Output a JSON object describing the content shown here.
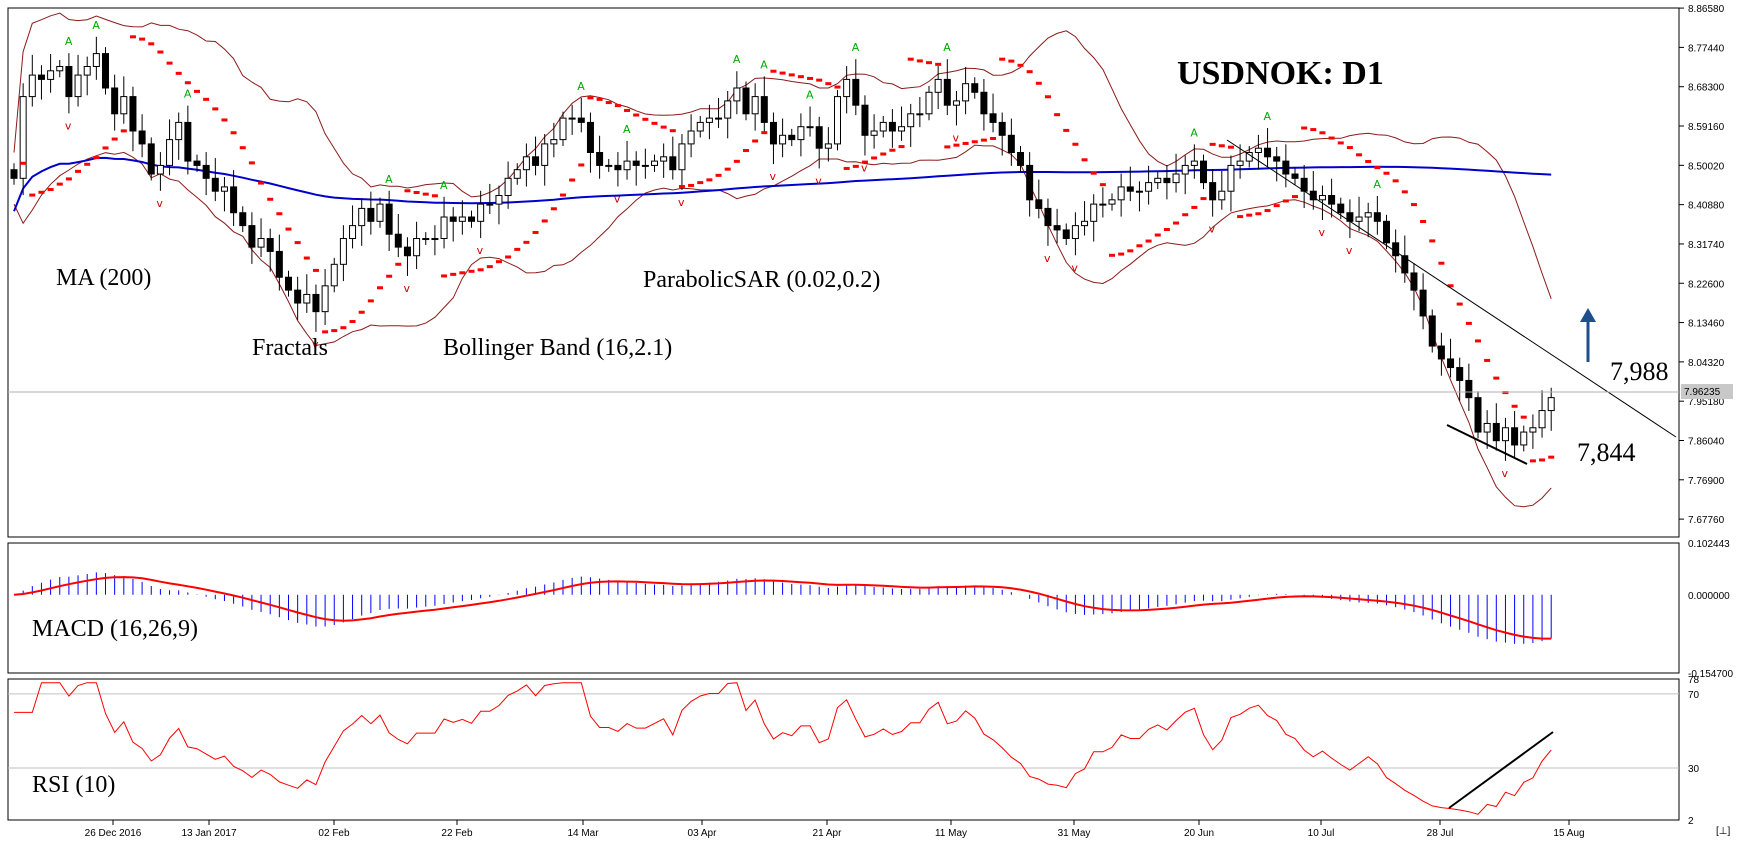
{
  "chart_title": "USDNOK: D1",
  "price_readout": "7.96235",
  "indicator_labels": {
    "ma": "MA (200)",
    "fractals": "Fractals",
    "bollinger": "Bollinger Band (16,2.1)",
    "sar": "ParabolicSAR (0.02,0.2)",
    "macd": "MACD (16,26,9)",
    "rsi": "RSI (10)"
  },
  "annotations": {
    "resistance": "7,988",
    "support": "7,844"
  },
  "colors": {
    "bull_candle": "#ffffff",
    "bear_candle": "#000000",
    "ma": "#0000cc",
    "bollinger": "#8b1a1a",
    "sar": "#ff0000",
    "fractal_up": "#00aa00",
    "fractal_down": "#cc0000",
    "macd_hist": "#0000ff",
    "macd_signal": "#ff0000",
    "rsi": "#ff0000",
    "arrow": "#1f4e8c"
  },
  "chart_data": [
    {
      "type": "candlestick",
      "title": "USDNOK: D1",
      "ylim": [
        7.636,
        8.866
      ],
      "y_ticks": [
        "8.86580",
        "8.77440",
        "8.68300",
        "8.59160",
        "8.50020",
        "8.40880",
        "8.31740",
        "8.22600",
        "8.13460",
        "8.04320",
        "7.95180",
        "7.86040",
        "7.76900",
        "7.67760"
      ],
      "x_ticks": [
        "26 Dec 2016",
        "13 Jan 2017",
        "02 Feb",
        "22 Feb",
        "14 Mar",
        "03 Apr",
        "21 Apr",
        "11 May",
        "31 May",
        "20 Jun",
        "10 Jul",
        "28 Jul",
        "15 Aug"
      ],
      "close": [
        8.47,
        8.66,
        8.71,
        8.7,
        8.72,
        8.73,
        8.66,
        8.71,
        8.73,
        8.76,
        8.68,
        8.62,
        8.66,
        8.58,
        8.55,
        8.48,
        8.5,
        8.56,
        8.6,
        8.51,
        8.5,
        8.47,
        8.44,
        8.45,
        8.39,
        8.36,
        8.31,
        8.33,
        8.3,
        8.24,
        8.21,
        8.18,
        8.2,
        8.16,
        8.22,
        8.27,
        8.33,
        8.36,
        8.4,
        8.37,
        8.41,
        8.34,
        8.31,
        8.29,
        8.33,
        8.33,
        8.33,
        8.38,
        8.37,
        8.38,
        8.37,
        8.41,
        8.41,
        8.43,
        8.47,
        8.49,
        8.52,
        8.5,
        8.55,
        8.56,
        8.61,
        8.61,
        8.6,
        8.53,
        8.5,
        8.5,
        8.49,
        8.51,
        8.5,
        8.5,
        8.51,
        8.52,
        8.49,
        8.55,
        8.58,
        8.6,
        8.61,
        8.61,
        8.65,
        8.68,
        8.62,
        8.66,
        8.6,
        8.55,
        8.57,
        8.56,
        8.59,
        8.59,
        8.54,
        8.55,
        8.66,
        8.7,
        8.64,
        8.57,
        8.58,
        8.6,
        8.58,
        8.59,
        8.62,
        8.62,
        8.67,
        8.7,
        8.64,
        8.65,
        8.69,
        8.67,
        8.62,
        8.6,
        8.57,
        8.53,
        8.5,
        8.42,
        8.4,
        8.36,
        8.35,
        8.33,
        8.36,
        8.37,
        8.41,
        8.41,
        8.42,
        8.45,
        8.44,
        8.44,
        8.46,
        8.47,
        8.46,
        8.48,
        8.5,
        8.51,
        8.46,
        8.42,
        8.44,
        8.5,
        8.51,
        8.53,
        8.54,
        8.52,
        8.51,
        8.48,
        8.47,
        8.44,
        8.42,
        8.43,
        8.41,
        8.39,
        8.37,
        8.38,
        8.39,
        8.37,
        8.32,
        8.29,
        8.25,
        8.21,
        8.15,
        8.08,
        8.05,
        8.03,
        8.0,
        7.96,
        7.88,
        7.9,
        7.86,
        7.89,
        7.85,
        7.88,
        7.89,
        7.93,
        7.96
      ]
    },
    {
      "type": "bar",
      "title": "MACD (16,26,9)",
      "ylim": [
        -0.1547,
        0.102443
      ],
      "y_ticks": [
        "0.102443",
        "0.000000",
        "-0.154700"
      ]
    },
    {
      "type": "line",
      "title": "RSI (10)",
      "ylim": [
        2,
        78
      ],
      "y_ticks": [
        "78",
        "70",
        "30",
        "2"
      ]
    }
  ]
}
